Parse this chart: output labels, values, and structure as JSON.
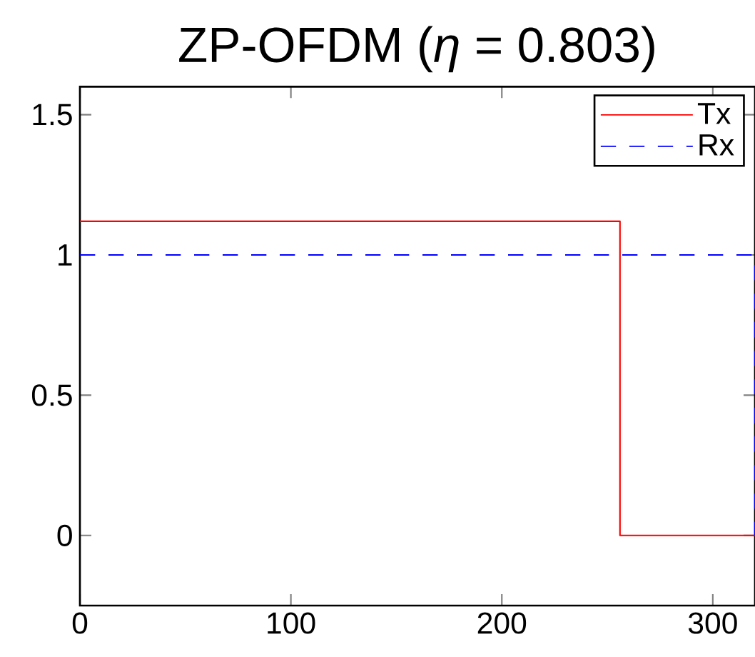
{
  "chart_data": {
    "type": "line",
    "title": "ZP-OFDM (*η* = 0.803)",
    "series": [
      {
        "name": "Tx",
        "color": "#ff0000",
        "line_style": "solid",
        "x": [
          0,
          256,
          256,
          320
        ],
        "values": [
          1.12,
          1.12,
          0,
          0
        ]
      },
      {
        "name": "Rx",
        "color": "#0000ff",
        "line_style": "dashed",
        "x": [
          0,
          320,
          320
        ],
        "values": [
          1,
          1,
          0
        ]
      }
    ],
    "xlim": [
      0,
      320
    ],
    "xticks": [
      0,
      100,
      200,
      300
    ],
    "ylim": [
      -0.25,
      1.6
    ],
    "yticks": [
      0,
      0.5,
      1,
      1.5
    ],
    "grid": false,
    "legend": "top right",
    "marker": "none"
  }
}
